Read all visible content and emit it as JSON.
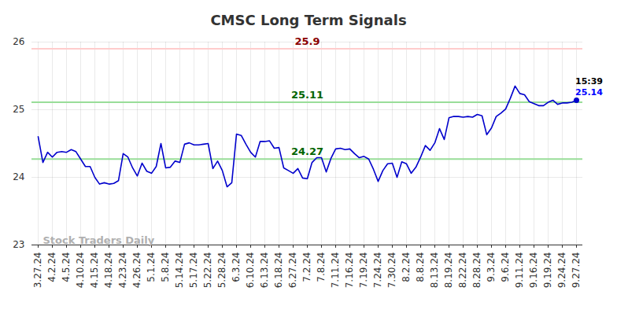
{
  "chart_data": {
    "type": "line",
    "title": "CMSC Long Term Signals",
    "categories": [
      "3.27.24",
      null,
      null,
      "4.2.24",
      null,
      null,
      "4.5.24",
      null,
      null,
      "4.10.24",
      null,
      null,
      "4.15.24",
      null,
      null,
      "4.18.24",
      null,
      null,
      "4.23.24",
      null,
      null,
      "4.26.24",
      null,
      null,
      "5.1.24",
      null,
      null,
      "5.8.24",
      null,
      null,
      "5.14.24",
      null,
      null,
      "5.17.24",
      null,
      null,
      "5.22.24",
      null,
      null,
      "5.28.24",
      null,
      null,
      "6.3.24",
      null,
      null,
      "6.10.24",
      null,
      null,
      "6.13.24",
      null,
      null,
      "6.18.24",
      null,
      null,
      "6.27.24",
      null,
      null,
      "7.2.24",
      null,
      null,
      "7.8.24",
      null,
      null,
      "7.11.24",
      null,
      null,
      "7.16.24",
      null,
      null,
      "7.19.24",
      null,
      null,
      "7.24.24",
      null,
      null,
      "7.30.24",
      null,
      null,
      "8.2.24",
      null,
      null,
      "8.8.24",
      null,
      null,
      "8.13.24",
      null,
      null,
      "8.19.24",
      null,
      null,
      "8.22.24",
      null,
      null,
      "8.28.24",
      null,
      null,
      "9.3.24",
      null,
      null,
      "9.6.24",
      null,
      null,
      "9.11.24",
      null,
      null,
      "9.16.24",
      null,
      null,
      "9.19.24",
      null,
      null,
      "9.24.24",
      null,
      null,
      "9.27.24"
    ],
    "values": [
      24.6,
      24.22,
      24.37,
      24.3,
      24.37,
      24.38,
      24.37,
      24.41,
      24.38,
      24.27,
      24.16,
      24.16,
      24.0,
      23.9,
      23.92,
      23.9,
      23.91,
      23.95,
      24.35,
      24.3,
      24.14,
      24.02,
      24.21,
      24.09,
      24.06,
      24.16,
      24.5,
      24.14,
      24.15,
      24.24,
      24.22,
      24.49,
      24.51,
      24.48,
      24.48,
      24.49,
      24.5,
      24.13,
      24.24,
      24.1,
      23.86,
      23.92,
      24.64,
      24.62,
      24.49,
      24.37,
      24.3,
      24.53,
      24.53,
      24.54,
      24.43,
      24.44,
      24.14,
      24.1,
      24.06,
      24.13,
      23.99,
      23.98,
      24.22,
      24.29,
      24.29,
      24.08,
      24.28,
      24.42,
      24.43,
      24.41,
      24.42,
      24.35,
      24.29,
      24.31,
      24.27,
      24.12,
      23.94,
      24.1,
      24.2,
      24.21,
      24.0,
      24.23,
      24.2,
      24.06,
      24.15,
      24.3,
      24.47,
      24.4,
      24.51,
      24.72,
      24.56,
      24.88,
      24.9,
      24.9,
      24.89,
      24.9,
      24.89,
      24.93,
      24.91,
      24.63,
      24.73,
      24.9,
      24.95,
      25.01,
      25.17,
      25.35,
      25.24,
      25.22,
      25.12,
      25.09,
      25.06,
      25.06,
      25.11,
      25.14,
      25.08,
      25.1,
      25.1,
      25.11,
      25.14
    ],
    "color": "#0000cc",
    "ylim": [
      23,
      26
    ],
    "yticks": [
      23,
      24,
      25,
      26
    ],
    "grid": true,
    "reference_lines": [
      {
        "value": 25.9,
        "label": "25.9",
        "color": "#ffcccc",
        "label_color": "#8b0000"
      },
      {
        "value": 25.11,
        "label": "25.11",
        "color": "#99dd99",
        "label_color": "#006400"
      },
      {
        "value": 24.27,
        "label": "24.27",
        "color": "#99dd99",
        "label_color": "#006400"
      }
    ],
    "annotations": [
      {
        "label": "15:39",
        "color": "#000000"
      },
      {
        "label": "25.14",
        "value": 25.14,
        "color": "#0000ff"
      }
    ],
    "watermark": "Stock Traders Daily"
  }
}
